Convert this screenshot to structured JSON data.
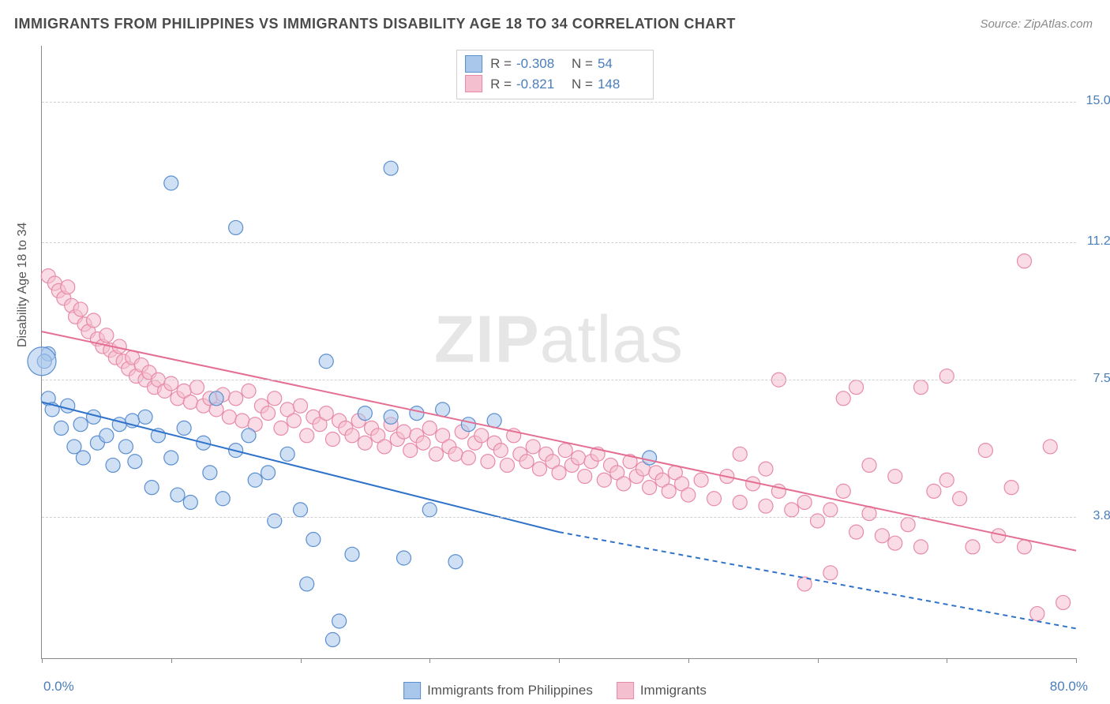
{
  "title": "IMMIGRANTS FROM PHILIPPINES VS IMMIGRANTS DISABILITY AGE 18 TO 34 CORRELATION CHART",
  "source": "Source: ZipAtlas.com",
  "ylabel": "Disability Age 18 to 34",
  "watermark_zip": "ZIP",
  "watermark_atlas": "atlas",
  "chart": {
    "type": "scatter_with_trend",
    "background_color": "#ffffff",
    "grid_color": "#d0d0d0",
    "axis_color": "#888888",
    "label_color_axis": "#4a7ebb",
    "label_color_text": "#555555",
    "title_color": "#4a4a4a",
    "title_fontsize": 18,
    "source_color": "#8a8a8a",
    "source_fontsize": 15,
    "axis_label_fontsize": 16,
    "tick_label_fontsize": 16,
    "legend_fontsize": 17,
    "marker_radius": 9,
    "marker_radius_large": 18,
    "marker_opacity": 0.55,
    "marker_stroke_width": 1.2,
    "trend_line_width": 2,
    "xlim": [
      0,
      80
    ],
    "ylim": [
      0,
      16.5
    ],
    "x_end_labels": {
      "min": "0.0%",
      "max": "80.0%"
    },
    "y_ticks": [
      {
        "v": 3.8,
        "label": "3.8%"
      },
      {
        "v": 7.5,
        "label": "7.5%"
      },
      {
        "v": 11.2,
        "label": "11.2%"
      },
      {
        "v": 15.0,
        "label": "15.0%"
      }
    ],
    "x_tick_positions": [
      0,
      10,
      20,
      30,
      40,
      50,
      60,
      70,
      80
    ],
    "series": {
      "philippines": {
        "label": "Immigrants from Philippines",
        "fill": "#a8c7eb",
        "stroke": "#5b8fd0",
        "trend_color": "#2f72c9",
        "R": "-0.308",
        "N": "54",
        "trend": {
          "x1": 0,
          "y1": 6.9,
          "x2_solid": 40,
          "y2_solid": 3.4,
          "x2_dash": 80,
          "y2_dash": 0.8
        },
        "points": [
          [
            0.5,
            8.2
          ],
          [
            0.5,
            7.0
          ],
          [
            0.2,
            8.0
          ],
          [
            0.8,
            6.7
          ],
          [
            1.5,
            6.2
          ],
          [
            2.0,
            6.8
          ],
          [
            2.5,
            5.7
          ],
          [
            3.0,
            6.3
          ],
          [
            3.2,
            5.4
          ],
          [
            4.0,
            6.5
          ],
          [
            4.3,
            5.8
          ],
          [
            5.0,
            6.0
          ],
          [
            5.5,
            5.2
          ],
          [
            6.0,
            6.3
          ],
          [
            6.5,
            5.7
          ],
          [
            7.0,
            6.4
          ],
          [
            7.2,
            5.3
          ],
          [
            8.0,
            6.5
          ],
          [
            8.5,
            4.6
          ],
          [
            9.0,
            6.0
          ],
          [
            10.0,
            5.4
          ],
          [
            10.5,
            4.4
          ],
          [
            11.0,
            6.2
          ],
          [
            11.5,
            4.2
          ],
          [
            12.5,
            5.8
          ],
          [
            13.0,
            5.0
          ],
          [
            13.5,
            7.0
          ],
          [
            14.0,
            4.3
          ],
          [
            15.0,
            5.6
          ],
          [
            16.0,
            6.0
          ],
          [
            16.5,
            4.8
          ],
          [
            17.5,
            5.0
          ],
          [
            18.0,
            3.7
          ],
          [
            19.0,
            5.5
          ],
          [
            20.0,
            4.0
          ],
          [
            20.5,
            2.0
          ],
          [
            21.0,
            3.2
          ],
          [
            22.0,
            8.0
          ],
          [
            22.5,
            0.5
          ],
          [
            23.0,
            1.0
          ],
          [
            10.0,
            12.8
          ],
          [
            15.0,
            11.6
          ],
          [
            27.0,
            13.2
          ],
          [
            24.0,
            2.8
          ],
          [
            25.0,
            6.6
          ],
          [
            27.0,
            6.5
          ],
          [
            28.0,
            2.7
          ],
          [
            29.0,
            6.6
          ],
          [
            30.0,
            4.0
          ],
          [
            31.0,
            6.7
          ],
          [
            32.0,
            2.6
          ],
          [
            33.0,
            6.3
          ],
          [
            35.0,
            6.4
          ],
          [
            47.0,
            5.4
          ]
        ],
        "large_point": [
          0.0,
          8.0
        ]
      },
      "immigrants": {
        "label": "Immigrants",
        "fill": "#f4bfcf",
        "stroke": "#e88ba8",
        "trend_color": "#e56f93",
        "R": "-0.821",
        "N": "148",
        "trend": {
          "x1": 0,
          "y1": 8.8,
          "x2": 80,
          "y2": 2.9
        },
        "points": [
          [
            0.5,
            10.3
          ],
          [
            1.0,
            10.1
          ],
          [
            1.3,
            9.9
          ],
          [
            1.7,
            9.7
          ],
          [
            2.0,
            10.0
          ],
          [
            2.3,
            9.5
          ],
          [
            2.6,
            9.2
          ],
          [
            3.0,
            9.4
          ],
          [
            3.3,
            9.0
          ],
          [
            3.6,
            8.8
          ],
          [
            4.0,
            9.1
          ],
          [
            4.3,
            8.6
          ],
          [
            4.7,
            8.4
          ],
          [
            5.0,
            8.7
          ],
          [
            5.3,
            8.3
          ],
          [
            5.7,
            8.1
          ],
          [
            6.0,
            8.4
          ],
          [
            6.3,
            8.0
          ],
          [
            6.7,
            7.8
          ],
          [
            7.0,
            8.1
          ],
          [
            7.3,
            7.6
          ],
          [
            7.7,
            7.9
          ],
          [
            8.0,
            7.5
          ],
          [
            8.3,
            7.7
          ],
          [
            8.7,
            7.3
          ],
          [
            9.0,
            7.5
          ],
          [
            9.5,
            7.2
          ],
          [
            10.0,
            7.4
          ],
          [
            10.5,
            7.0
          ],
          [
            11.0,
            7.2
          ],
          [
            11.5,
            6.9
          ],
          [
            12.0,
            7.3
          ],
          [
            12.5,
            6.8
          ],
          [
            13.0,
            7.0
          ],
          [
            13.5,
            6.7
          ],
          [
            14.0,
            7.1
          ],
          [
            14.5,
            6.5
          ],
          [
            15.0,
            7.0
          ],
          [
            15.5,
            6.4
          ],
          [
            16.0,
            7.2
          ],
          [
            16.5,
            6.3
          ],
          [
            17.0,
            6.8
          ],
          [
            17.5,
            6.6
          ],
          [
            18.0,
            7.0
          ],
          [
            18.5,
            6.2
          ],
          [
            19.0,
            6.7
          ],
          [
            19.5,
            6.4
          ],
          [
            20.0,
            6.8
          ],
          [
            20.5,
            6.0
          ],
          [
            21.0,
            6.5
          ],
          [
            21.5,
            6.3
          ],
          [
            22.0,
            6.6
          ],
          [
            22.5,
            5.9
          ],
          [
            23.0,
            6.4
          ],
          [
            23.5,
            6.2
          ],
          [
            24.0,
            6.0
          ],
          [
            24.5,
            6.4
          ],
          [
            25.0,
            5.8
          ],
          [
            25.5,
            6.2
          ],
          [
            26.0,
            6.0
          ],
          [
            26.5,
            5.7
          ],
          [
            27.0,
            6.3
          ],
          [
            27.5,
            5.9
          ],
          [
            28.0,
            6.1
          ],
          [
            28.5,
            5.6
          ],
          [
            29.0,
            6.0
          ],
          [
            29.5,
            5.8
          ],
          [
            30.0,
            6.2
          ],
          [
            30.5,
            5.5
          ],
          [
            31.0,
            6.0
          ],
          [
            31.5,
            5.7
          ],
          [
            32.0,
            5.5
          ],
          [
            32.5,
            6.1
          ],
          [
            33.0,
            5.4
          ],
          [
            33.5,
            5.8
          ],
          [
            34.0,
            6.0
          ],
          [
            34.5,
            5.3
          ],
          [
            35.0,
            5.8
          ],
          [
            35.5,
            5.6
          ],
          [
            36.0,
            5.2
          ],
          [
            36.5,
            6.0
          ],
          [
            37.0,
            5.5
          ],
          [
            37.5,
            5.3
          ],
          [
            38.0,
            5.7
          ],
          [
            38.5,
            5.1
          ],
          [
            39.0,
            5.5
          ],
          [
            39.5,
            5.3
          ],
          [
            40.0,
            5.0
          ],
          [
            40.5,
            5.6
          ],
          [
            41.0,
            5.2
          ],
          [
            41.5,
            5.4
          ],
          [
            42.0,
            4.9
          ],
          [
            42.5,
            5.3
          ],
          [
            43.0,
            5.5
          ],
          [
            43.5,
            4.8
          ],
          [
            44.0,
            5.2
          ],
          [
            44.5,
            5.0
          ],
          [
            45.0,
            4.7
          ],
          [
            45.5,
            5.3
          ],
          [
            46.0,
            4.9
          ],
          [
            46.5,
            5.1
          ],
          [
            47.0,
            4.6
          ],
          [
            47.5,
            5.0
          ],
          [
            48.0,
            4.8
          ],
          [
            48.5,
            4.5
          ],
          [
            49.0,
            5.0
          ],
          [
            49.5,
            4.7
          ],
          [
            50.0,
            4.4
          ],
          [
            51.0,
            4.8
          ],
          [
            52.0,
            4.3
          ],
          [
            53.0,
            4.9
          ],
          [
            54.0,
            4.2
          ],
          [
            55.0,
            4.7
          ],
          [
            56.0,
            4.1
          ],
          [
            57.0,
            4.5
          ],
          [
            58.0,
            4.0
          ],
          [
            59.0,
            4.2
          ],
          [
            60.0,
            3.7
          ],
          [
            61.0,
            4.0
          ],
          [
            62.0,
            4.5
          ],
          [
            63.0,
            3.4
          ],
          [
            64.0,
            3.9
          ],
          [
            65.0,
            3.3
          ],
          [
            57.0,
            7.5
          ],
          [
            62.0,
            7.0
          ],
          [
            63.0,
            7.3
          ],
          [
            59.0,
            2.0
          ],
          [
            61.0,
            2.3
          ],
          [
            66.0,
            3.1
          ],
          [
            67.0,
            3.6
          ],
          [
            68.0,
            3.0
          ],
          [
            69.0,
            4.5
          ],
          [
            70.0,
            4.8
          ],
          [
            71.0,
            4.3
          ],
          [
            72.0,
            3.0
          ],
          [
            73.0,
            5.6
          ],
          [
            74.0,
            3.3
          ],
          [
            75.0,
            4.6
          ],
          [
            76.0,
            3.0
          ],
          [
            77.0,
            1.2
          ],
          [
            78.0,
            5.7
          ],
          [
            79.0,
            1.5
          ],
          [
            76.0,
            10.7
          ],
          [
            70.0,
            7.6
          ],
          [
            68.0,
            7.3
          ],
          [
            66.0,
            4.9
          ],
          [
            64.0,
            5.2
          ],
          [
            56.0,
            5.1
          ],
          [
            54.0,
            5.5
          ]
        ]
      }
    }
  }
}
